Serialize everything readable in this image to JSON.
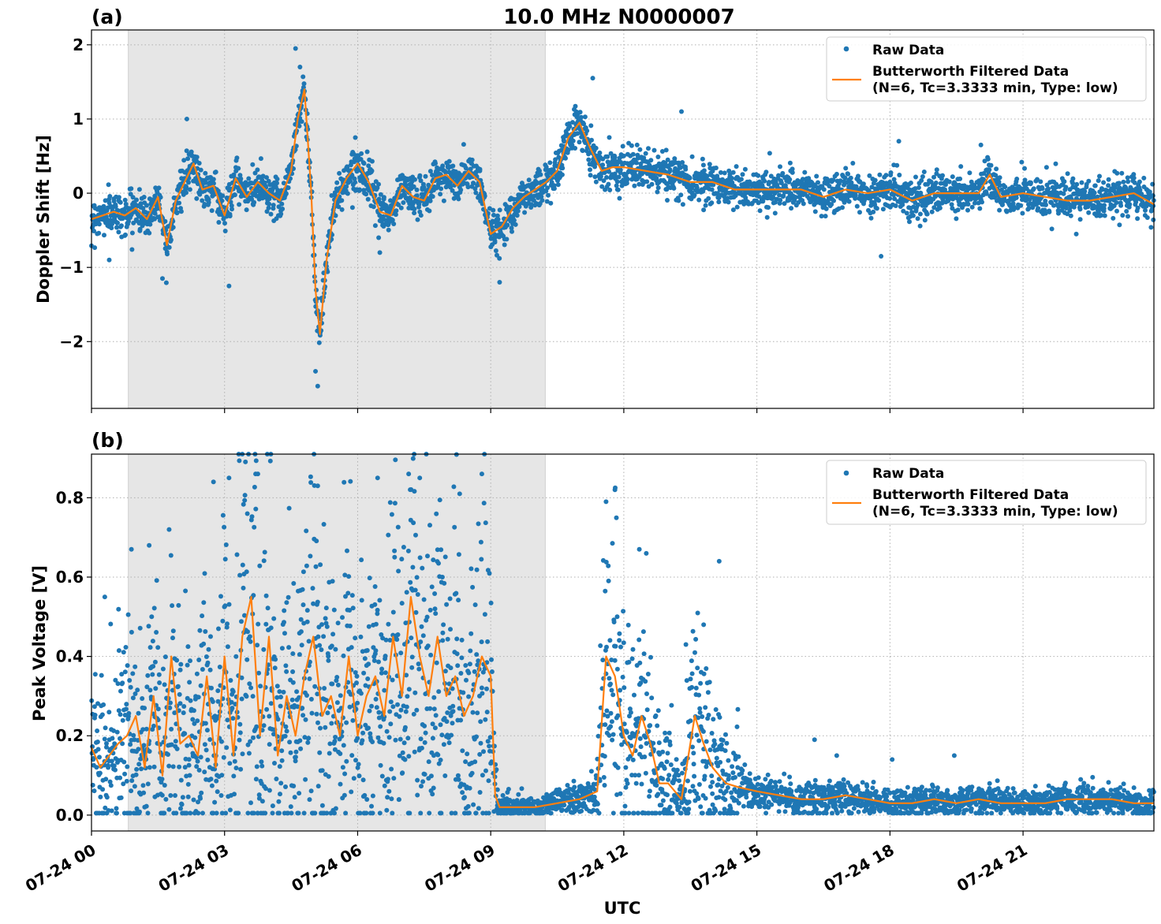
{
  "figure": {
    "title": "10.0 MHz N0000007",
    "xlabel": "UTC",
    "x_tick_labels": [
      "07-24 00",
      "07-24 03",
      "07-24 06",
      "07-24 09",
      "07-24 12",
      "07-24 15",
      "07-24 18",
      "07-24 21"
    ],
    "colors": {
      "raw": "#1f77b4",
      "filtered": "#ff7f0e",
      "shade": "#e6e6e6",
      "grid": "#b0b0b0"
    }
  },
  "chart_data": [
    {
      "type": "scatter",
      "panel_label": "(a)",
      "ylabel": "Doppler Shift [Hz]",
      "xlim": [
        0,
        23.95
      ],
      "ylim": [
        -2.9,
        2.2
      ],
      "x_unit": "hours UTC on 07-24",
      "y_ticks": [
        2,
        1,
        0,
        -1,
        -2
      ],
      "y_tick_labels": [
        "2",
        "1",
        "0",
        "−1",
        "−2"
      ],
      "grid": true,
      "legend_position": "upper right",
      "shaded_interval": [
        0.83,
        10.23
      ],
      "legend": {
        "raw": "Raw Data",
        "filtered_line1": "Butterworth Filtered Data",
        "filtered_line2": "(N=6, Tc=3.3333 min, Type: low)"
      },
      "series": [
        {
          "name": "Butterworth Filtered Data",
          "x": [
            0,
            0.25,
            0.5,
            0.75,
            1.0,
            1.25,
            1.5,
            1.7,
            1.9,
            2.1,
            2.3,
            2.5,
            2.75,
            3.0,
            3.25,
            3.5,
            3.75,
            4.0,
            4.25,
            4.5,
            4.65,
            4.8,
            4.95,
            5.05,
            5.15,
            5.3,
            5.5,
            5.75,
            6.0,
            6.25,
            6.5,
            6.75,
            7.0,
            7.25,
            7.5,
            7.75,
            8.0,
            8.25,
            8.5,
            8.75,
            9.0,
            9.25,
            9.5,
            9.75,
            10.0,
            10.25,
            10.5,
            10.75,
            11.0,
            11.25,
            11.5,
            11.75,
            12.0,
            12.5,
            13.0,
            13.5,
            14.0,
            14.5,
            15.0,
            15.5,
            16.0,
            16.5,
            17.0,
            17.5,
            18.0,
            18.5,
            19.0,
            19.5,
            20.0,
            20.25,
            20.5,
            21.0,
            21.5,
            22.0,
            22.5,
            23.0,
            23.5,
            23.95
          ],
          "y": [
            -0.35,
            -0.3,
            -0.25,
            -0.3,
            -0.2,
            -0.35,
            -0.05,
            -0.7,
            -0.1,
            0.15,
            0.4,
            0.05,
            0.1,
            -0.3,
            0.2,
            -0.05,
            0.15,
            0.0,
            -0.1,
            0.3,
            1.0,
            1.4,
            0.05,
            -1.3,
            -1.9,
            -0.9,
            -0.1,
            0.2,
            0.4,
            0.15,
            -0.25,
            -0.3,
            0.1,
            -0.05,
            -0.1,
            0.2,
            0.25,
            0.1,
            0.3,
            0.15,
            -0.55,
            -0.45,
            -0.2,
            -0.05,
            0.05,
            0.15,
            0.3,
            0.75,
            0.95,
            0.6,
            0.3,
            0.35,
            0.35,
            0.3,
            0.25,
            0.15,
            0.15,
            0.05,
            0.05,
            0.05,
            0.05,
            -0.05,
            0.05,
            0.0,
            0.05,
            -0.1,
            0.0,
            0.0,
            0.0,
            0.25,
            -0.05,
            0.0,
            -0.05,
            -0.1,
            -0.1,
            -0.05,
            0.0,
            -0.15
          ]
        },
        {
          "name": "Raw Data",
          "x": [
            0.4,
            1.6,
            2.15,
            3.1,
            4.6,
            4.7,
            5.05,
            5.1,
            6.5,
            9.2,
            11.3,
            12.3,
            13.3,
            17.8,
            18.2,
            20.05,
            22.2
          ],
          "y": [
            -0.9,
            -1.15,
            1.0,
            -1.25,
            1.95,
            1.7,
            -2.4,
            -2.6,
            -0.8,
            -1.2,
            1.55,
            0.65,
            1.1,
            -0.85,
            0.7,
            0.65,
            -0.55
          ]
        }
      ]
    },
    {
      "type": "scatter",
      "panel_label": "(b)",
      "ylabel": "Peak Voltage [V]",
      "xlim": [
        0,
        23.95
      ],
      "ylim": [
        -0.04,
        0.91
      ],
      "x_unit": "hours UTC on 07-24",
      "y_ticks": [
        0.0,
        0.2,
        0.4,
        0.6,
        0.8
      ],
      "y_tick_labels": [
        "0.0",
        "0.2",
        "0.4",
        "0.6",
        "0.8"
      ],
      "grid": true,
      "legend_position": "upper right",
      "shaded_interval": [
        0.83,
        10.23
      ],
      "legend": {
        "raw": "Raw Data",
        "filtered_line1": "Butterworth Filtered Data",
        "filtered_line2": "(N=6, Tc=3.3333 min, Type: low)"
      },
      "series": [
        {
          "name": "Butterworth Filtered Data",
          "x": [
            0,
            0.2,
            0.4,
            0.6,
            0.8,
            1.0,
            1.2,
            1.4,
            1.6,
            1.8,
            2.0,
            2.2,
            2.4,
            2.6,
            2.8,
            3.0,
            3.2,
            3.4,
            3.6,
            3.8,
            4.0,
            4.2,
            4.4,
            4.6,
            4.8,
            5.0,
            5.2,
            5.4,
            5.6,
            5.8,
            6.0,
            6.2,
            6.4,
            6.6,
            6.8,
            7.0,
            7.2,
            7.4,
            7.6,
            7.8,
            8.0,
            8.2,
            8.4,
            8.6,
            8.8,
            9.0,
            9.1,
            9.2,
            9.6,
            10.0,
            10.5,
            11.0,
            11.4,
            11.6,
            11.8,
            12.0,
            12.2,
            12.4,
            12.6,
            12.8,
            13.0,
            13.3,
            13.6,
            13.8,
            14.0,
            14.3,
            14.6,
            15.0,
            15.5,
            16.0,
            16.5,
            17.0,
            17.5,
            18.0,
            18.5,
            19.0,
            19.5,
            20.0,
            20.5,
            21.0,
            21.5,
            22.0,
            22.5,
            23.0,
            23.5,
            23.95
          ],
          "y": [
            0.17,
            0.12,
            0.15,
            0.18,
            0.2,
            0.25,
            0.12,
            0.3,
            0.1,
            0.4,
            0.18,
            0.2,
            0.15,
            0.35,
            0.12,
            0.4,
            0.15,
            0.45,
            0.55,
            0.2,
            0.45,
            0.15,
            0.3,
            0.2,
            0.35,
            0.45,
            0.25,
            0.3,
            0.2,
            0.4,
            0.2,
            0.3,
            0.35,
            0.25,
            0.45,
            0.3,
            0.55,
            0.4,
            0.3,
            0.45,
            0.3,
            0.35,
            0.25,
            0.3,
            0.4,
            0.35,
            0.05,
            0.02,
            0.02,
            0.02,
            0.03,
            0.04,
            0.06,
            0.4,
            0.35,
            0.2,
            0.15,
            0.25,
            0.18,
            0.08,
            0.08,
            0.04,
            0.25,
            0.18,
            0.12,
            0.08,
            0.07,
            0.06,
            0.05,
            0.04,
            0.04,
            0.05,
            0.04,
            0.03,
            0.03,
            0.04,
            0.03,
            0.04,
            0.03,
            0.03,
            0.03,
            0.04,
            0.04,
            0.04,
            0.03,
            0.03
          ]
        },
        {
          "name": "Raw Data",
          "x": [
            0.3,
            0.9,
            1.3,
            1.75,
            2.75,
            3.1,
            3.7,
            3.75,
            5.1,
            6.45,
            7.15,
            7.4,
            8.3,
            8.8,
            11.6,
            11.8,
            12.35,
            13.4,
            13.8,
            14.15,
            16.3,
            16.8,
            18.05,
            19.45,
            22.3
          ],
          "y": [
            0.55,
            0.67,
            0.68,
            0.72,
            0.84,
            0.85,
            0.86,
            0.86,
            0.83,
            0.85,
            0.86,
            0.85,
            0.81,
            0.86,
            0.79,
            0.82,
            0.67,
            0.43,
            0.48,
            0.64,
            0.19,
            0.15,
            0.14,
            0.15,
            0.09
          ]
        }
      ]
    }
  ]
}
